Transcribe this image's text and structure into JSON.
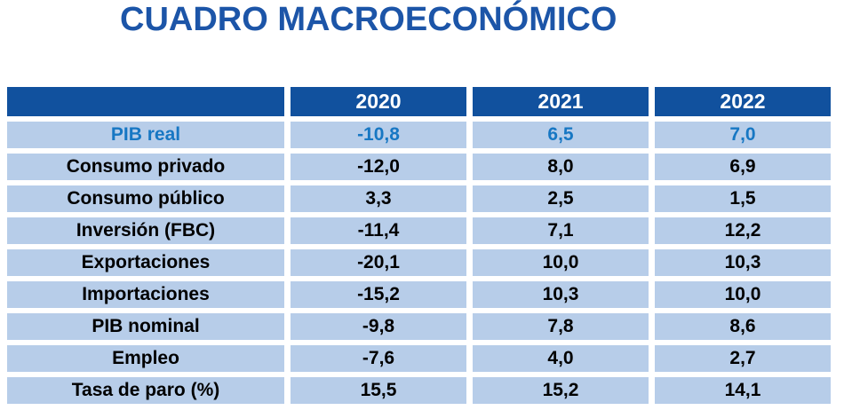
{
  "title": "CUADRO MACROECONÓMICO",
  "colors": {
    "title_text": "#1c55a8",
    "header_background": "#11519e",
    "header_text": "#ffffff",
    "row_background": "#b7cde9",
    "row_text": "#000000",
    "highlight_row_text": "#1777c3",
    "page_background": "#ffffff"
  },
  "table": {
    "corner_label": "",
    "years": [
      "2020",
      "2021",
      "2022"
    ],
    "rows": [
      {
        "label": "PIB real",
        "values": [
          "-10,8",
          "6,5",
          "7,0"
        ],
        "highlight": true
      },
      {
        "label": "Consumo privado",
        "values": [
          "-12,0",
          "8,0",
          "6,9"
        ],
        "highlight": false
      },
      {
        "label": "Consumo público",
        "values": [
          "3,3",
          "2,5",
          "1,5"
        ],
        "highlight": false
      },
      {
        "label": "Inversión (FBC)",
        "values": [
          "-11,4",
          "7,1",
          "12,2"
        ],
        "highlight": false
      },
      {
        "label": "Exportaciones",
        "values": [
          "-20,1",
          "10,0",
          "10,3"
        ],
        "highlight": false
      },
      {
        "label": "Importaciones",
        "values": [
          "-15,2",
          "10,3",
          "10,0"
        ],
        "highlight": false
      },
      {
        "label": "PIB nominal",
        "values": [
          "-9,8",
          "7,8",
          "8,6"
        ],
        "highlight": false
      },
      {
        "label": "Empleo",
        "values": [
          "-7,6",
          "4,0",
          "2,7"
        ],
        "highlight": false
      },
      {
        "label": "Tasa de paro (%)",
        "values": [
          "15,5",
          "15,2",
          "14,1"
        ],
        "highlight": false
      }
    ]
  },
  "chart_data": {
    "type": "table",
    "title": "CUADRO MACROECONÓMICO",
    "columns": [
      "",
      "2020",
      "2021",
      "2022"
    ],
    "rows": [
      [
        "PIB real",
        -10.8,
        6.5,
        7.0
      ],
      [
        "Consumo privado",
        -12.0,
        8.0,
        6.9
      ],
      [
        "Consumo público",
        3.3,
        2.5,
        1.5
      ],
      [
        "Inversión (FBC)",
        -11.4,
        7.1,
        12.2
      ],
      [
        "Exportaciones",
        -20.1,
        10.0,
        10.3
      ],
      [
        "Importaciones",
        -15.2,
        10.3,
        10.0
      ],
      [
        "PIB nominal",
        -9.8,
        7.8,
        8.6
      ],
      [
        "Empleo",
        -7.6,
        4.0,
        2.7
      ],
      [
        "Tasa de paro (%)",
        15.5,
        15.2,
        14.1
      ]
    ],
    "notes": "Decimal comma formatting as displayed; highlighted first row (PIB real) shown in blue."
  }
}
